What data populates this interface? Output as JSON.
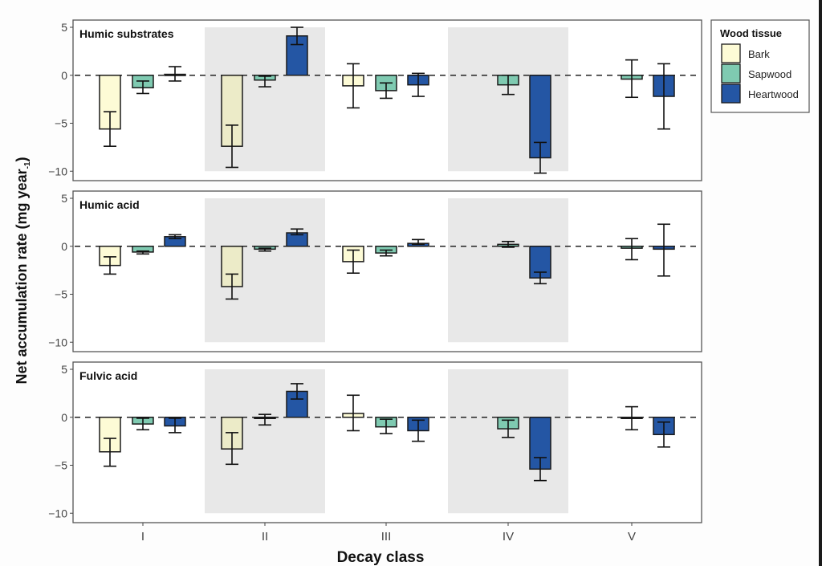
{
  "chart_data": {
    "type": "bar",
    "xlabel": "Decay class",
    "ylabel": "Net accumulation rate (mg year",
    "ylabel_superscript": "-1",
    "ylabel_close": ")",
    "categories": [
      "I",
      "II",
      "III",
      "IV",
      "V"
    ],
    "shaded_categories": [
      "II",
      "IV"
    ],
    "ylim": [
      -10,
      5
    ],
    "yticks": [
      5,
      0,
      -5,
      -10
    ],
    "reference_line": 0,
    "legend": {
      "title": "Wood tissue",
      "placement": "top-right",
      "entries": [
        {
          "name": "Bark",
          "color": "#fdfbd6"
        },
        {
          "name": "Sapwood",
          "color": "#7fcab1"
        },
        {
          "name": "Heartwood",
          "color": "#2456a4"
        }
      ]
    },
    "panels": [
      {
        "title": "Humic substrates",
        "series": [
          {
            "name": "Bark",
            "values": [
              -5.6,
              -7.4,
              -1.1,
              null,
              null
            ],
            "err_high": [
              -3.8,
              -5.2,
              1.2,
              null,
              null
            ],
            "err_low": [
              -7.4,
              -9.6,
              -3.4,
              null,
              null
            ]
          },
          {
            "name": "Sapwood",
            "values": [
              -1.3,
              -0.5,
              -1.6,
              -1.0,
              -0.4
            ],
            "err_high": [
              -0.6,
              -0.1,
              -0.8,
              0.0,
              1.6
            ],
            "err_low": [
              -1.9,
              -1.2,
              -2.4,
              -2.0,
              -2.3
            ]
          },
          {
            "name": "Heartwood",
            "values": [
              0.1,
              4.1,
              -1.0,
              -8.6,
              -2.2
            ],
            "err_high": [
              0.9,
              5.0,
              0.2,
              -7.0,
              1.2
            ],
            "err_low": [
              -0.6,
              3.2,
              -2.2,
              -10.2,
              -5.6
            ]
          }
        ]
      },
      {
        "title": "Humic acid",
        "series": [
          {
            "name": "Bark",
            "values": [
              -2.0,
              -4.2,
              -1.6,
              null,
              null
            ],
            "err_high": [
              -1.1,
              -2.9,
              -0.4,
              null,
              null
            ],
            "err_low": [
              -2.9,
              -5.5,
              -2.8,
              null,
              null
            ]
          },
          {
            "name": "Sapwood",
            "values": [
              -0.6,
              -0.3,
              -0.7,
              0.2,
              -0.2
            ],
            "err_high": [
              -0.5,
              -0.2,
              -0.4,
              0.5,
              0.8
            ],
            "err_low": [
              -0.8,
              -0.5,
              -1.0,
              -0.1,
              -1.4
            ]
          },
          {
            "name": "Heartwood",
            "values": [
              1.0,
              1.4,
              0.3,
              -3.3,
              -0.3
            ],
            "err_high": [
              1.2,
              1.8,
              0.7,
              -2.7,
              2.3
            ],
            "err_low": [
              0.8,
              1.2,
              0.2,
              -3.9,
              -3.1
            ]
          }
        ]
      },
      {
        "title": "Fulvic acid",
        "series": [
          {
            "name": "Bark",
            "values": [
              -3.6,
              -3.3,
              0.4,
              null,
              null
            ],
            "err_high": [
              -2.2,
              -1.6,
              2.3,
              null,
              null
            ],
            "err_low": [
              -5.1,
              -4.9,
              -1.4,
              null,
              null
            ]
          },
          {
            "name": "Sapwood",
            "values": [
              -0.7,
              -0.1,
              -1.0,
              -1.2,
              0.0
            ],
            "err_high": [
              -0.1,
              0.3,
              -0.2,
              -0.3,
              1.1
            ],
            "err_low": [
              -1.3,
              -0.8,
              -1.7,
              -2.1,
              -1.3
            ]
          },
          {
            "name": "Heartwood",
            "values": [
              -0.9,
              2.7,
              -1.4,
              -5.4,
              -1.8
            ],
            "err_high": [
              -0.1,
              3.5,
              -0.3,
              -4.2,
              -0.5
            ],
            "err_low": [
              -1.6,
              1.9,
              -2.5,
              -6.6,
              -3.1
            ]
          }
        ]
      }
    ]
  }
}
